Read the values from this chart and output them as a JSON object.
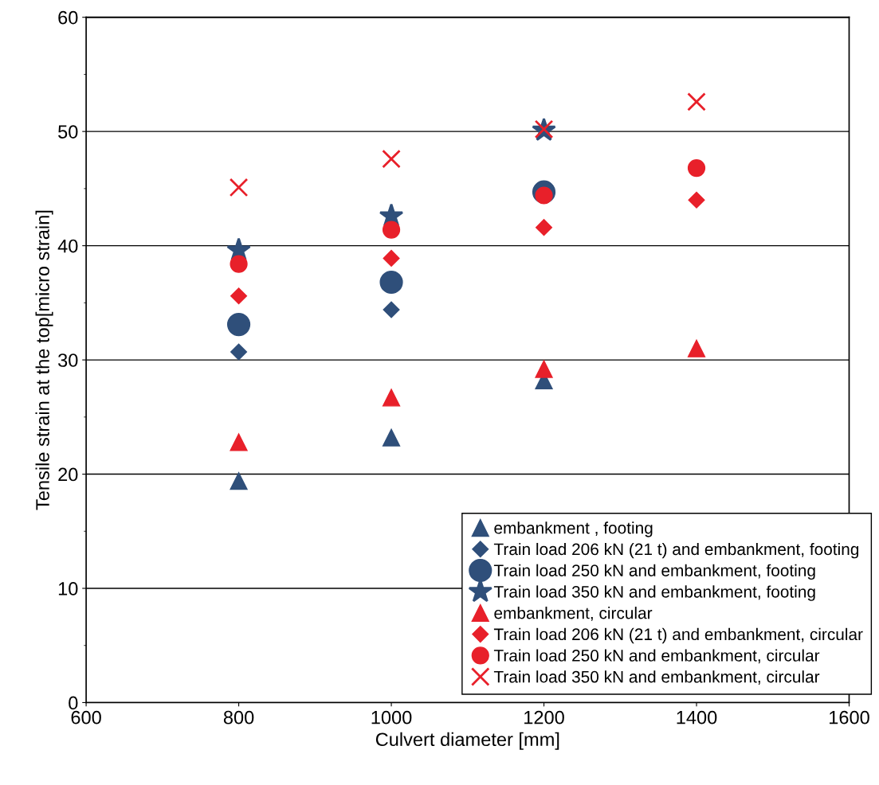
{
  "chart_data": {
    "type": "scatter",
    "xlabel": "Culvert diameter [mm]",
    "ylabel": "Tensile strain at the top[micro strain]",
    "x": [
      800,
      1000,
      1200,
      1400
    ],
    "xlim": [
      600,
      1600
    ],
    "xticks": [
      600,
      800,
      1000,
      1200,
      1400,
      1600
    ],
    "ylim": [
      0,
      60
    ],
    "yticks": [
      0,
      10,
      20,
      30,
      40,
      50,
      60
    ],
    "grid": "y",
    "legend": "bottom right",
    "series": [
      {
        "name": "embankment , footing",
        "color": "#2f4f7a",
        "marker": "triangle",
        "values": [
          19.4,
          23.2,
          28.2,
          null
        ]
      },
      {
        "name": "Train load 206 kN (21 t) and embankment, footing",
        "color": "#2f4f7a",
        "marker": "diamond",
        "values": [
          30.7,
          34.4,
          null,
          null
        ]
      },
      {
        "name": "Train load 250 kN and embankment, footing",
        "color": "#2f4f7a",
        "marker": "circle",
        "values": [
          33.1,
          36.8,
          44.7,
          null
        ]
      },
      {
        "name": "Train load 350 kN and embankment, footing",
        "color": "#2f4f7a",
        "marker": "star",
        "values": [
          39.6,
          42.6,
          50.1,
          null
        ]
      },
      {
        "name": "embankment, circular",
        "color": "#e8202a",
        "marker": "triangle",
        "values": [
          22.8,
          26.7,
          29.2,
          31.0
        ]
      },
      {
        "name": "Train load 206 kN (21 t) and embankment, circular",
        "color": "#e8202a",
        "marker": "diamond",
        "values": [
          35.6,
          38.9,
          41.6,
          44.0
        ]
      },
      {
        "name": "Train load 250 kN and embankment, circular",
        "color": "#e8202a",
        "marker": "circle",
        "values": [
          38.4,
          41.4,
          44.4,
          46.8
        ]
      },
      {
        "name": "Train load 350 kN and embankment, circular",
        "color": "#e8202a",
        "marker": "cross",
        "values": [
          45.1,
          47.6,
          50.2,
          52.6
        ]
      }
    ]
  }
}
